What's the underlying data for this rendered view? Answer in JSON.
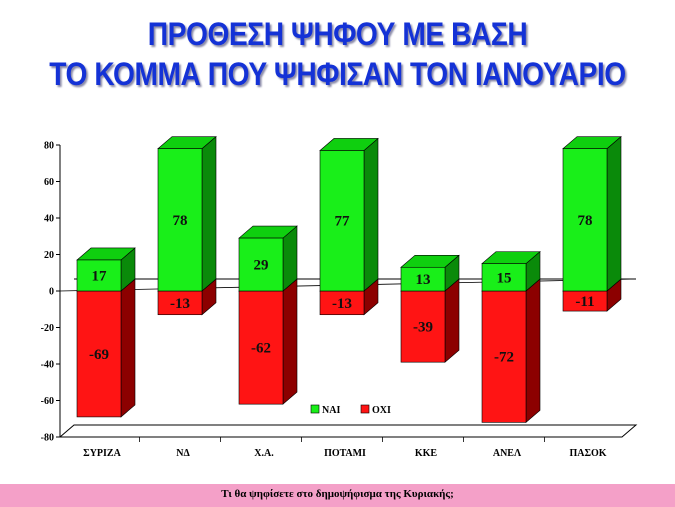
{
  "title": {
    "line1": "ΠΡΟΘΕΣΗ ΨΗΦΟΥ ΜΕ ΒΑΣΗ",
    "line2": "ΤΟ ΚΟΜΜΑ ΠΟΥ ΨΗΦΙΣΑΝ ΤΟΝ ΙΑΝΟΥΑΡΙΟ"
  },
  "footer": {
    "text": "Τι θα ψηφίσετε στο δημοψήφισμα της Κυριακής;"
  },
  "colors": {
    "title": "#1432d6",
    "yes_front": "#19ef19",
    "yes_top": "#0fcf0f",
    "yes_side": "#0a8a0a",
    "no_front": "#ff1414",
    "no_top": "#c80000",
    "no_side": "#8c0000",
    "footer_bg": "#f4a0c8"
  },
  "chart_data": {
    "type": "bar",
    "categories": [
      "ΣΥΡΙΖΑ",
      "ΝΔ",
      "Χ.Α.",
      "ΠΟΤΑΜΙ",
      "ΚΚΕ",
      "ΑΝΕΛ",
      "ΠΑΣΟΚ"
    ],
    "series": [
      {
        "name": "ΝΑΙ",
        "values": [
          17,
          78,
          29,
          77,
          13,
          15,
          78
        ]
      },
      {
        "name": "ΟΧΙ",
        "values": [
          -69,
          -13,
          -62,
          -13,
          -39,
          -72,
          -11
        ]
      }
    ],
    "data_labels": {
      "ΝΑΙ": [
        "17",
        "78",
        "29",
        "77",
        "13",
        "15",
        "78"
      ],
      "ΟΧΙ": [
        "-69",
        "-13",
        "-62",
        "-13",
        "-39",
        "-72",
        "-11"
      ]
    },
    "stacked": true,
    "ylim": [
      -80,
      80
    ],
    "yticks": [
      80,
      60,
      40,
      20,
      0,
      -20,
      -40,
      -60,
      -80
    ],
    "legend": "bottom-center",
    "grid": false,
    "three_d": true
  }
}
